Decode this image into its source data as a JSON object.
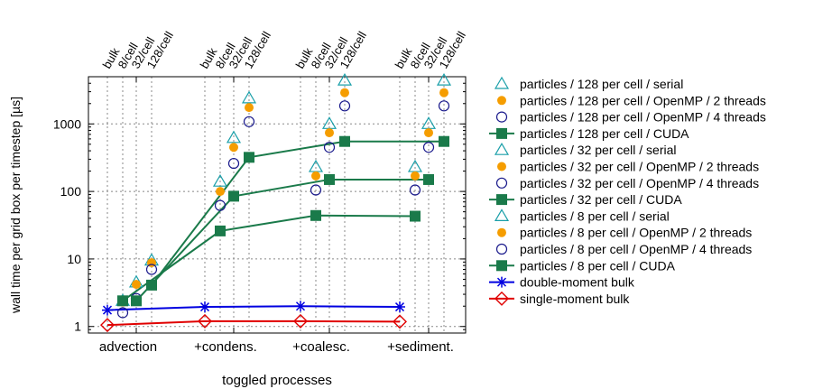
{
  "chart_data": {
    "type": "scatter",
    "xlabel": "toggled processes",
    "ylabel": "wall time per grid box per timestep [µs]",
    "yscale": "log",
    "ylim": [
      0.8,
      5000
    ],
    "yticks": [
      1,
      10,
      100,
      1000
    ],
    "ytick_labels": [
      "1",
      "10",
      "100",
      "1000"
    ],
    "categories": [
      "advection",
      "+condens.",
      "+coalesc.",
      "+sediment."
    ],
    "top_labels": [
      "bulk",
      "8/cell",
      "32/cell",
      "128/cell"
    ],
    "grid": true,
    "legend_position": "right",
    "colors": {
      "serial": "#1a9fa9",
      "openmp2": "#f59d00",
      "openmp4": "#1a1a8c",
      "cuda": "#1a7a4a",
      "double": "#0000e0",
      "single": "#e00000"
    },
    "series": [
      {
        "name": "particles / 128 per cell / serial",
        "marker": "triangle",
        "color": "serial",
        "values": [
          9.5,
          2400,
          4400,
          4400
        ]
      },
      {
        "name": "particles / 128 per cell / OpenMP / 2 threads",
        "marker": "dot",
        "color": "openmp2",
        "values": [
          8.8,
          1750,
          2900,
          2900
        ]
      },
      {
        "name": "particles / 128 per cell / OpenMP / 4 threads",
        "marker": "circle",
        "color": "openmp4",
        "values": [
          7.0,
          1080,
          1850,
          1850
        ]
      },
      {
        "name": "particles / 128 per cell / CUDA",
        "marker": "square",
        "color": "cuda",
        "line": true,
        "values": [
          4.1,
          320,
          550,
          550
        ]
      },
      {
        "name": "particles / 32 per cell / serial",
        "marker": "triangle",
        "color": "serial",
        "values": [
          4.5,
          620,
          1000,
          1000
        ]
      },
      {
        "name": "particles / 32 per cell / OpenMP / 2 threads",
        "marker": "dot",
        "color": "openmp2",
        "values": [
          4.2,
          450,
          740,
          740
        ]
      },
      {
        "name": "particles / 32 per cell / OpenMP / 4 threads",
        "marker": "circle",
        "color": "openmp4",
        "values": [
          2.6,
          260,
          450,
          450
        ]
      },
      {
        "name": "particles / 32 per cell / CUDA",
        "marker": "square",
        "color": "cuda",
        "line": true,
        "values": [
          2.4,
          85,
          150,
          150
        ]
      },
      {
        "name": "particles / 8 per cell / serial",
        "marker": "triangle",
        "color": "serial",
        "values": [
          2.4,
          140,
          230,
          230
        ]
      },
      {
        "name": "particles / 8 per cell / OpenMP / 2 threads",
        "marker": "dot",
        "color": "openmp2",
        "values": [
          2.3,
          100,
          170,
          170
        ]
      },
      {
        "name": "particles / 8 per cell / OpenMP / 4 threads",
        "marker": "circle",
        "color": "openmp4",
        "values": [
          1.6,
          62,
          105,
          105
        ]
      },
      {
        "name": "particles / 8 per cell / CUDA",
        "marker": "square",
        "color": "cuda",
        "line": true,
        "values": [
          2.4,
          26,
          44,
          43
        ]
      },
      {
        "name": "double-moment bulk",
        "marker": "star",
        "color": "double",
        "line": true,
        "values": [
          1.75,
          1.95,
          2.0,
          1.95
        ]
      },
      {
        "name": "single-moment bulk",
        "marker": "diamond",
        "color": "single",
        "line": true,
        "values": [
          1.05,
          1.2,
          1.2,
          1.18
        ]
      }
    ]
  }
}
